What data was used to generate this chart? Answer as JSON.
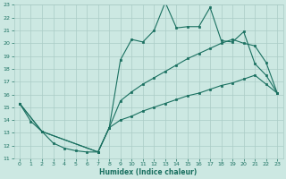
{
  "xlabel": "Humidex (Indice chaleur)",
  "xlim": [
    -0.5,
    23.5
  ],
  "ylim": [
    11,
    23
  ],
  "yticks": [
    11,
    12,
    13,
    14,
    15,
    16,
    17,
    18,
    19,
    20,
    21,
    22,
    23
  ],
  "xticks": [
    0,
    1,
    2,
    3,
    4,
    5,
    6,
    7,
    8,
    9,
    10,
    11,
    12,
    13,
    14,
    15,
    16,
    17,
    18,
    19,
    20,
    21,
    22,
    23
  ],
  "bg_color": "#cce8e2",
  "line_color": "#1a7060",
  "grid_color": "#aaccc6",
  "line1_x": [
    0,
    1,
    2,
    3,
    4,
    5,
    6,
    7,
    8,
    9,
    10,
    11,
    12,
    13,
    14,
    15,
    16,
    17,
    18,
    19,
    20,
    21,
    22,
    23
  ],
  "line1_y": [
    15.3,
    13.9,
    13.1,
    12.2,
    11.8,
    11.6,
    11.5,
    11.5,
    13.4,
    18.7,
    20.3,
    20.1,
    21.0,
    23.2,
    21.2,
    21.3,
    21.3,
    22.8,
    20.2,
    20.1,
    20.9,
    18.4,
    17.5,
    16.1
  ],
  "line2_x": [
    0,
    2,
    7,
    8,
    9,
    10,
    11,
    12,
    13,
    14,
    15,
    16,
    17,
    18,
    19,
    20,
    21,
    22,
    23
  ],
  "line2_y": [
    15.3,
    13.1,
    11.5,
    13.4,
    15.5,
    16.2,
    16.8,
    17.3,
    17.8,
    18.3,
    18.8,
    19.2,
    19.6,
    20.0,
    20.3,
    20.0,
    19.8,
    18.5,
    16.1
  ],
  "line3_x": [
    0,
    2,
    7,
    8,
    9,
    10,
    11,
    12,
    13,
    14,
    15,
    16,
    17,
    18,
    19,
    20,
    21,
    22,
    23
  ],
  "line3_y": [
    15.3,
    13.1,
    11.5,
    13.4,
    14.0,
    14.3,
    14.7,
    15.0,
    15.3,
    15.6,
    15.9,
    16.1,
    16.4,
    16.7,
    16.9,
    17.2,
    17.5,
    16.8,
    16.1
  ]
}
